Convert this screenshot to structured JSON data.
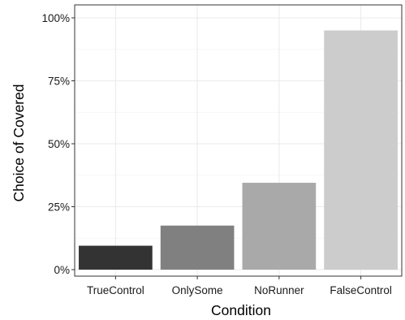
{
  "chart_data": {
    "type": "bar",
    "title": "",
    "xlabel": "Condition",
    "ylabel": "Choice of Covered",
    "categories": [
      "TrueControl",
      "OnlySome",
      "NoRunner",
      "FalseControl"
    ],
    "values": [
      9.5,
      17.5,
      34.5,
      95
    ],
    "bar_colors": [
      "#333333",
      "#808080",
      "#a9a9a9",
      "#cccccc"
    ],
    "ylim": [
      0,
      100
    ],
    "yticks": [
      0,
      25,
      50,
      75,
      100
    ],
    "ytick_labels": [
      "0%",
      "25%",
      "50%",
      "75%",
      "100%"
    ],
    "grid": true,
    "legend": "none"
  }
}
